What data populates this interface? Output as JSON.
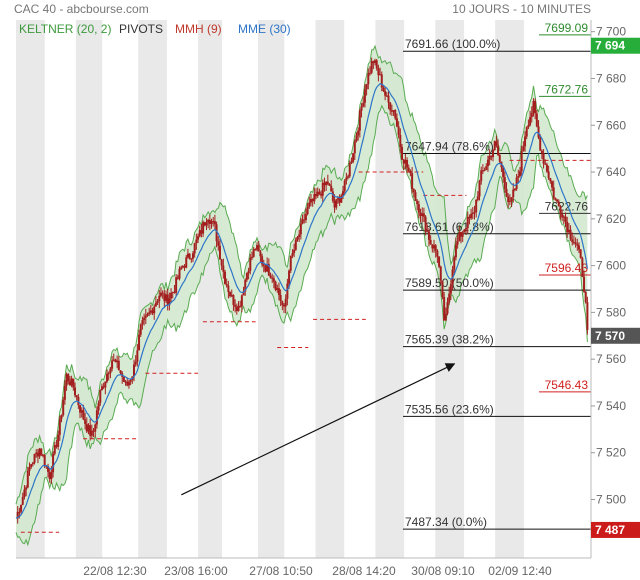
{
  "header": {
    "title": "CAC 40 - abcbourse.com",
    "period": "10 JOURS - 10 MINUTES"
  },
  "legend": [
    {
      "label": "KELTNER (20, 2)",
      "color": "#3d9a3d"
    },
    {
      "label": "PIVOTS",
      "color": "#333333"
    },
    {
      "label": "MMH (9)",
      "color": "#c0392b"
    },
    {
      "label": "MME (30)",
      "color": "#2e75c8"
    }
  ],
  "colors": {
    "candle": "#a31e1e",
    "band_fill": "#d3e9cf",
    "band_line": "#5aab52",
    "mme": "#2e75c8",
    "pivot_dash": "#d02020",
    "fib_line": "#111111",
    "current_price_bg": "#27ae3a",
    "low_price_bg": "#cc1b1b",
    "session_shade": "#e9e9e9"
  },
  "chart_data": {
    "type": "candlestick",
    "title": "CAC 40 - abcbourse.com",
    "period": "10 JOURS - 10 MINUTES",
    "ylim": [
      7475,
      7705
    ],
    "y_ticks": [
      7500,
      7520,
      7540,
      7560,
      7580,
      7600,
      7620,
      7640,
      7660,
      7680,
      7700
    ],
    "y_tick_labels": [
      "7 500",
      "7 520",
      "7 540",
      "7 560",
      "7 580",
      "7 600",
      "7 620",
      "7 640",
      "7 660",
      "7 680",
      "7 700"
    ],
    "x_tick_labels": [
      "22/08 12:30",
      "23/08 16:00",
      "27/08 10:50",
      "28/08 14:20",
      "30/08 09:10",
      "02/09 12:40"
    ],
    "price_path": [
      [
        0,
        7492
      ],
      [
        0.3,
        7502
      ],
      [
        0.6,
        7515
      ],
      [
        1.0,
        7522
      ],
      [
        1.4,
        7510
      ],
      [
        1.8,
        7530
      ],
      [
        2.1,
        7553
      ],
      [
        2.4,
        7548
      ],
      [
        2.7,
        7538
      ],
      [
        3.0,
        7530
      ],
      [
        3.2,
        7527
      ],
      [
        3.5,
        7545
      ],
      [
        4.0,
        7560
      ],
      [
        4.3,
        7556
      ],
      [
        4.6,
        7548
      ],
      [
        4.9,
        7555
      ],
      [
        5.2,
        7573
      ],
      [
        5.6,
        7580
      ],
      [
        6.0,
        7588
      ],
      [
        6.3,
        7585
      ],
      [
        6.6,
        7590
      ],
      [
        6.9,
        7599
      ],
      [
        7.3,
        7605
      ],
      [
        7.7,
        7614
      ],
      [
        8.0,
        7622
      ],
      [
        8.3,
        7616
      ],
      [
        8.7,
        7595
      ],
      [
        9.0,
        7586
      ],
      [
        9.3,
        7582
      ],
      [
        9.7,
        7600
      ],
      [
        10.0,
        7608
      ],
      [
        10.3,
        7601
      ],
      [
        10.7,
        7596
      ],
      [
        11.0,
        7587
      ],
      [
        11.2,
        7580
      ],
      [
        11.4,
        7600
      ],
      [
        11.8,
        7613
      ],
      [
        12.2,
        7625
      ],
      [
        12.6,
        7630
      ],
      [
        13.0,
        7636
      ],
      [
        13.3,
        7625
      ],
      [
        13.7,
        7633
      ],
      [
        14.0,
        7646
      ],
      [
        14.3,
        7661
      ],
      [
        14.6,
        7678
      ],
      [
        14.9,
        7688
      ],
      [
        15.2,
        7680
      ],
      [
        15.5,
        7670
      ],
      [
        15.8,
        7666
      ],
      [
        16.1,
        7648
      ],
      [
        16.4,
        7640
      ],
      [
        16.7,
        7628
      ],
      [
        17.0,
        7620
      ],
      [
        17.3,
        7610
      ],
      [
        17.6,
        7605
      ],
      [
        17.9,
        7574
      ],
      [
        18.1,
        7590
      ],
      [
        18.3,
        7606
      ],
      [
        18.5,
        7612
      ],
      [
        18.8,
        7618
      ],
      [
        19.1,
        7622
      ],
      [
        19.4,
        7638
      ],
      [
        19.7,
        7645
      ],
      [
        20.0,
        7652
      ],
      [
        20.3,
        7640
      ],
      [
        20.6,
        7625
      ],
      [
        20.8,
        7632
      ],
      [
        21.0,
        7640
      ],
      [
        21.3,
        7660
      ],
      [
        21.6,
        7668
      ],
      [
        21.8,
        7655
      ],
      [
        22.0,
        7646
      ],
      [
        22.2,
        7640
      ],
      [
        22.5,
        7628
      ],
      [
        22.8,
        7623
      ],
      [
        23.1,
        7614
      ],
      [
        23.4,
        7609
      ],
      [
        23.6,
        7600
      ],
      [
        23.75,
        7588
      ],
      [
        23.85,
        7570
      ]
    ],
    "sessions": [
      [
        0,
        1
      ],
      [
        1,
        2
      ],
      [
        2,
        3
      ],
      [
        3,
        4
      ],
      [
        4,
        5
      ],
      [
        5,
        6
      ],
      [
        6,
        7
      ],
      [
        7,
        8
      ],
      [
        8,
        9
      ],
      [
        9,
        10
      ],
      [
        10,
        11
      ],
      [
        11,
        12
      ],
      [
        12,
        13
      ],
      [
        13,
        14
      ],
      [
        14,
        15
      ],
      [
        15,
        16
      ],
      [
        16,
        17
      ],
      [
        17,
        18
      ],
      [
        18,
        19
      ],
      [
        19,
        20
      ],
      [
        20,
        21
      ],
      [
        21,
        22
      ],
      [
        22,
        23
      ],
      [
        23,
        24
      ]
    ],
    "shaded_sessions": [
      [
        0,
        1.2
      ],
      [
        2.5,
        3.6
      ],
      [
        5.1,
        6.3
      ],
      [
        7.6,
        8.6
      ],
      [
        10.1,
        11.2
      ],
      [
        12.5,
        13.7
      ],
      [
        15.0,
        16.2
      ],
      [
        17.5,
        18.7
      ],
      [
        20.0,
        21.2
      ]
    ],
    "fibonacci": [
      {
        "value": 7691.66,
        "label": "7691.66  (100.0%)"
      },
      {
        "value": 7647.94,
        "label": "7647.94  (78.6%)"
      },
      {
        "value": 7613.61,
        "label": "7613.61  (61.8%)"
      },
      {
        "value": 7589.5,
        "label": "7589.50  (50.0%)"
      },
      {
        "value": 7565.39,
        "label": "7565.39  (38.2%)"
      },
      {
        "value": 7535.56,
        "label": "7535.56  (23.6%)"
      },
      {
        "value": 7487.34,
        "label": "7487.34  (0.0%)"
      }
    ],
    "pivot_levels": [
      {
        "value": 7699.09,
        "label": "7699.09",
        "color": "#2e8b2e"
      },
      {
        "value": 7672.76,
        "label": "7672.76",
        "color": "#2e8b2e"
      },
      {
        "value": 7622.76,
        "label": "7622.76",
        "color": "#333333"
      },
      {
        "value": 7596.43,
        "label": "7596.43",
        "color": "#d02020"
      },
      {
        "value": 7546.43,
        "label": "7546.43",
        "color": "#d02020"
      }
    ],
    "price_badges": [
      {
        "value": 7694,
        "label": "7 694",
        "color": "#27ae3a"
      },
      {
        "value": 7570,
        "label": "7 570",
        "color": "#555555"
      },
      {
        "value": 7487,
        "label": "7 487",
        "color": "#cc1b1b"
      }
    ],
    "daily_pivot_dashes": [
      {
        "x0": 0.2,
        "x1": 1.8,
        "value": 7486
      },
      {
        "x0": 2.8,
        "x1": 5.1,
        "value": 7526
      },
      {
        "x0": 5.4,
        "x1": 7.6,
        "value": 7554
      },
      {
        "x0": 7.8,
        "x1": 10.0,
        "value": 7576
      },
      {
        "x0": 10.9,
        "x1": 12.2,
        "value": 7565
      },
      {
        "x0": 12.4,
        "x1": 14.6,
        "value": 7577
      },
      {
        "x0": 14.3,
        "x1": 17.0,
        "value": 7640
      },
      {
        "x0": 17.0,
        "x1": 18.8,
        "value": 7630
      },
      {
        "x0": 20.6,
        "x1": 24.0,
        "value": 7645
      }
    ],
    "trend_arrow": {
      "x0": 6.9,
      "y0": 7502,
      "x1": 18.3,
      "y1": 7558
    }
  }
}
